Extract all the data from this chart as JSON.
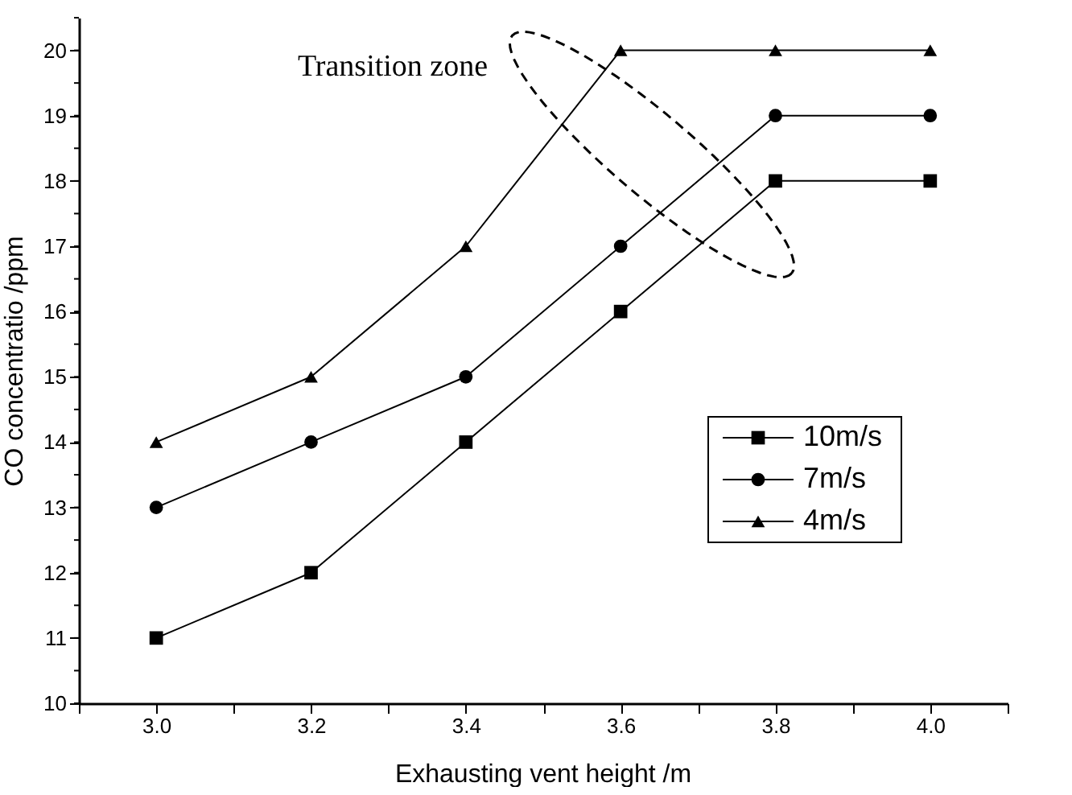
{
  "chart_data": {
    "type": "line",
    "xlabel": "Exhausting vent height /m",
    "ylabel": "CO concentratio /ppm",
    "x": [
      3.0,
      3.2,
      3.4,
      3.6,
      3.8,
      4.0
    ],
    "series": [
      {
        "name": "10m/s",
        "color": "#000000",
        "marker": "square",
        "values": [
          11,
          12,
          14,
          16,
          18,
          18
        ]
      },
      {
        "name": "7m/s",
        "color": "#000000",
        "marker": "circle",
        "values": [
          13,
          14,
          15,
          17,
          19,
          19
        ]
      },
      {
        "name": "4m/s",
        "color": "#000000",
        "marker": "triangle",
        "values": [
          14,
          15,
          17,
          20,
          20,
          20
        ]
      }
    ],
    "xlim": [
      2.9,
      4.1
    ],
    "xticks": [
      {
        "value": 2.9,
        "label": null
      },
      {
        "value": 3.0,
        "label": "3.0"
      },
      {
        "value": 3.1,
        "label": null
      },
      {
        "value": 3.2,
        "label": "3.2"
      },
      {
        "value": 3.3,
        "label": null
      },
      {
        "value": 3.4,
        "label": "3.4"
      },
      {
        "value": 3.5,
        "label": null
      },
      {
        "value": 3.6,
        "label": "3.6"
      },
      {
        "value": 3.7,
        "label": null
      },
      {
        "value": 3.8,
        "label": "3.8"
      },
      {
        "value": 3.9,
        "label": null
      },
      {
        "value": 4.0,
        "label": "4.0"
      },
      {
        "value": 4.1,
        "label": null
      }
    ],
    "ylim": [
      10,
      20.5
    ],
    "yticks": [
      10,
      11,
      12,
      13,
      14,
      15,
      16,
      17,
      18,
      19,
      20
    ],
    "annotations": [
      "Transition zone"
    ],
    "legend": "right",
    "grid": false,
    "line_style": "solid"
  }
}
